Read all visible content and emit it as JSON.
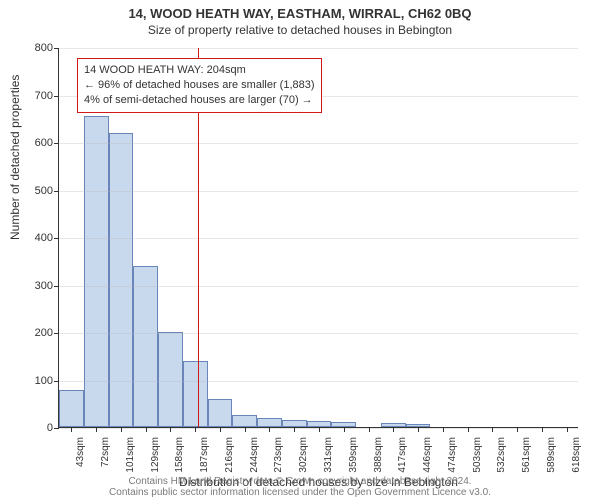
{
  "title": "14, WOOD HEATH WAY, EASTHAM, WIRRAL, CH62 0BQ",
  "subtitle": "Size of property relative to detached houses in Bebington",
  "y_axis": {
    "label": "Number of detached properties",
    "ticks": [
      0,
      100,
      200,
      300,
      400,
      500,
      600,
      700,
      800
    ],
    "ylim": [
      0,
      800
    ],
    "label_fontsize": 12,
    "tick_fontsize": 11
  },
  "x_axis": {
    "label": "Distribution of detached houses by size in Bebington",
    "tick_labels": [
      "43sqm",
      "72sqm",
      "101sqm",
      "129sqm",
      "158sqm",
      "187sqm",
      "216sqm",
      "244sqm",
      "273sqm",
      "302sqm",
      "331sqm",
      "359sqm",
      "388sqm",
      "417sqm",
      "446sqm",
      "474sqm",
      "503sqm",
      "532sqm",
      "561sqm",
      "589sqm",
      "618sqm"
    ],
    "label_fontsize": 12,
    "tick_fontsize": 10
  },
  "histogram": {
    "type": "histogram",
    "values": [
      78,
      655,
      620,
      340,
      200,
      140,
      60,
      25,
      20,
      15,
      12,
      10,
      0,
      8,
      7,
      0,
      0,
      0,
      0,
      0,
      0
    ],
    "bar_fill": "#c8d8ed",
    "bar_border": "#6a86b8",
    "background_color": "#ffffff",
    "grid_color": "#bbbbbb"
  },
  "marker": {
    "bin_index_after": 5,
    "color": "#d11919",
    "box": {
      "line1": "14 WOOD HEATH WAY: 204sqm",
      "line2": "← 96% of detached houses are smaller (1,883)",
      "line3": "4% of semi-detached houses are larger (70) →"
    }
  },
  "footer": {
    "line1": "Contains HM Land Registry data © Crown copyright and database right 2024.",
    "line2": "Contains public sector information licensed under the Open Government Licence v3.0."
  },
  "styling": {
    "title_fontsize": 13,
    "subtitle_fontsize": 12,
    "footer_fontsize": 10,
    "footer_color": "#7a7a7a",
    "text_color": "#333333"
  }
}
